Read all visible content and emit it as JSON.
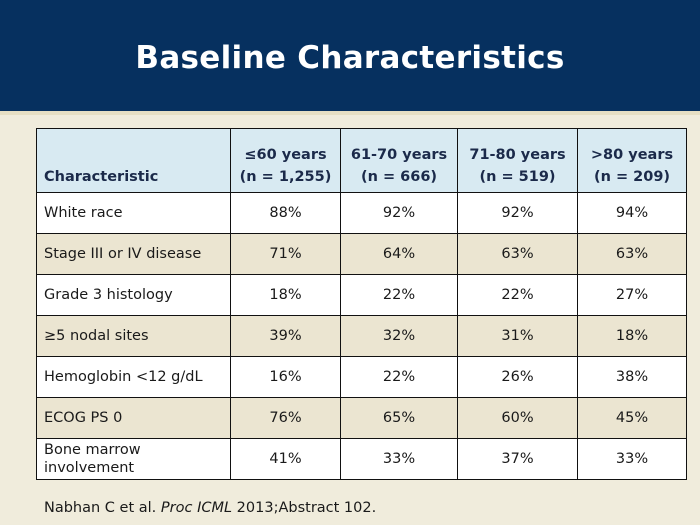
{
  "slide": {
    "title": "Baseline Characteristics",
    "colors": {
      "header_band": "#06305f",
      "header_row": "#d8eaf2",
      "row_alt": "#ebe5d1",
      "background": "#f0ecdc"
    }
  },
  "table": {
    "header": {
      "characteristic": "Characteristic",
      "groups": [
        {
          "label": "≤60 years",
          "n": "(n = 1,255)"
        },
        {
          "label": "61-70 years",
          "n": "(n = 666)"
        },
        {
          "label": "71-80 years",
          "n": "(n = 519)"
        },
        {
          "label": ">80 years",
          "n": "(n = 209)"
        }
      ]
    },
    "rows": [
      {
        "label": "White race",
        "values": [
          "88%",
          "92%",
          "92%",
          "94%"
        ]
      },
      {
        "label": "Stage III or IV disease",
        "values": [
          "71%",
          "64%",
          "63%",
          "63%"
        ]
      },
      {
        "label": "Grade 3 histology",
        "values": [
          "18%",
          "22%",
          "22%",
          "27%"
        ]
      },
      {
        "label": "≥5 nodal sites",
        "values": [
          "39%",
          "32%",
          "31%",
          "18%"
        ]
      },
      {
        "label": "Hemoglobin <12 g/dL",
        "values": [
          "16%",
          "22%",
          "26%",
          "38%"
        ]
      },
      {
        "label": "ECOG PS 0",
        "values": [
          "76%",
          "65%",
          "60%",
          "45%"
        ]
      },
      {
        "label": "Bone marrow involvement",
        "values": [
          "41%",
          "33%",
          "37%",
          "33%"
        ]
      }
    ]
  },
  "citation": {
    "prefix": "Nabhan C et al. ",
    "journal": "Proc ICML",
    "suffix": " 2013;Abstract 102."
  }
}
